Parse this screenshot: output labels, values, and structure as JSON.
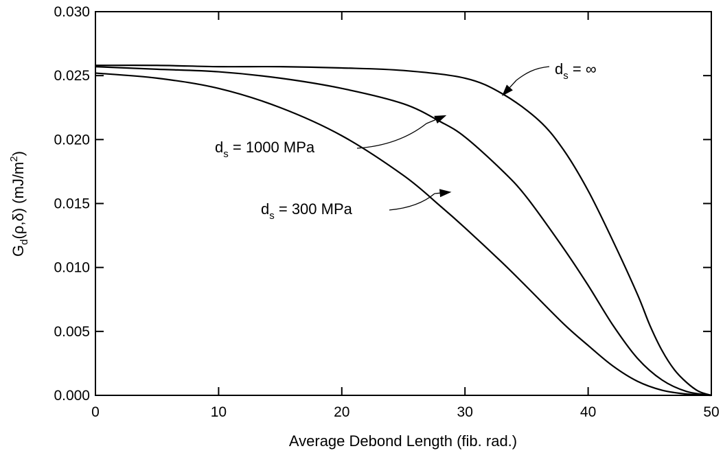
{
  "chart_data": {
    "type": "line",
    "xlabel": "Average Debond Length (fib. rad.)",
    "ylabel_main": "G",
    "ylabel_sub": "d",
    "ylabel_mid": "(ρ,δ) (mJ/m",
    "ylabel_sup": "2",
    "ylabel_end": ")",
    "xlim": [
      0,
      50
    ],
    "ylim": [
      0,
      0.03
    ],
    "x_ticks": [
      0,
      10,
      20,
      30,
      40,
      50
    ],
    "x_tick_labels": [
      "0",
      "10",
      "20",
      "30",
      "40",
      "50"
    ],
    "y_ticks": [
      0,
      0.005,
      0.01,
      0.015,
      0.02,
      0.025,
      0.03
    ],
    "y_tick_labels": [
      "0.000",
      "0.005",
      "0.010",
      "0.015",
      "0.020",
      "0.025",
      "0.030"
    ],
    "grid": false,
    "series": [
      {
        "x": [
          0,
          5,
          10,
          15,
          20,
          25,
          30,
          33,
          36,
          38,
          40,
          42,
          44,
          45,
          46,
          47,
          48,
          49,
          50
        ],
        "y": [
          0.0258,
          0.0258,
          0.0257,
          0.0257,
          0.0256,
          0.0254,
          0.0248,
          0.0236,
          0.0215,
          0.0192,
          0.016,
          0.0121,
          0.0079,
          0.0055,
          0.0035,
          0.002,
          0.001,
          0.0003,
          0
        ]
      },
      {
        "x": [
          0,
          5,
          10,
          15,
          20,
          25,
          28,
          30,
          33,
          35,
          38,
          40,
          42,
          44,
          46,
          48,
          50
        ],
        "y": [
          0.0257,
          0.0255,
          0.0253,
          0.0248,
          0.024,
          0.0228,
          0.0214,
          0.0202,
          0.0176,
          0.0155,
          0.0115,
          0.0086,
          0.0055,
          0.0029,
          0.0012,
          0.0003,
          0
        ]
      },
      {
        "x": [
          0,
          5,
          10,
          15,
          20,
          25,
          28,
          30,
          33,
          35,
          38,
          40,
          42,
          44,
          46,
          48,
          50
        ],
        "y": [
          0.0252,
          0.0248,
          0.024,
          0.0225,
          0.0203,
          0.0172,
          0.0148,
          0.0131,
          0.0104,
          0.0085,
          0.0056,
          0.0039,
          0.0023,
          0.0011,
          0.0004,
          0.0001,
          0
        ]
      }
    ],
    "annotations": [
      {
        "main": "d",
        "sub": "s",
        "rest": " = ∞",
        "x": 33,
        "y": 0.0234
      },
      {
        "main": "d",
        "sub": "s",
        "rest": " = 1000 MPa",
        "x": 28.5,
        "y": 0.0219
      },
      {
        "main": "d",
        "sub": "s",
        "rest": " = 300 MPa",
        "x": 28.9,
        "y": 0.0159
      }
    ]
  }
}
